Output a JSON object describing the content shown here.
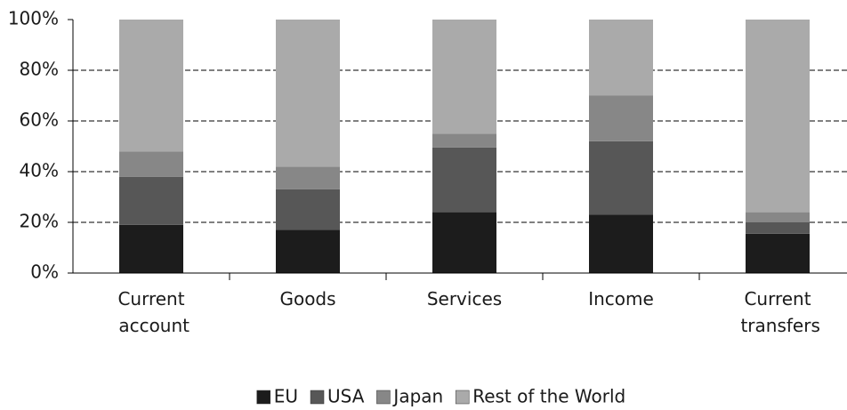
{
  "chart_data": {
    "type": "stacked_bar",
    "categories": [
      "Current account",
      "Goods",
      "Services",
      "Income",
      "Current transfers"
    ],
    "series": [
      {
        "name": "EU",
        "color": "#1c1c1c",
        "values": [
          19,
          17,
          24,
          23,
          15.5
        ]
      },
      {
        "name": "USA",
        "color": "#575757",
        "values": [
          19,
          16,
          25.5,
          29,
          4.5
        ]
      },
      {
        "name": "Japan",
        "color": "#878787",
        "values": [
          10,
          9,
          5.5,
          18,
          4
        ]
      },
      {
        "name": "Rest of the World",
        "color": "#aaaaaa",
        "values": [
          52,
          58,
          45,
          30,
          76
        ]
      }
    ],
    "ylim": [
      0,
      100
    ],
    "yticks": [
      {
        "value": 0,
        "label": "0%"
      },
      {
        "value": 20,
        "label": "20%"
      },
      {
        "value": 40,
        "label": "40%"
      },
      {
        "value": 60,
        "label": "60%"
      },
      {
        "value": 80,
        "label": "80%"
      },
      {
        "value": 100,
        "label": "100%"
      }
    ],
    "grid": true,
    "legend": "bottom"
  }
}
